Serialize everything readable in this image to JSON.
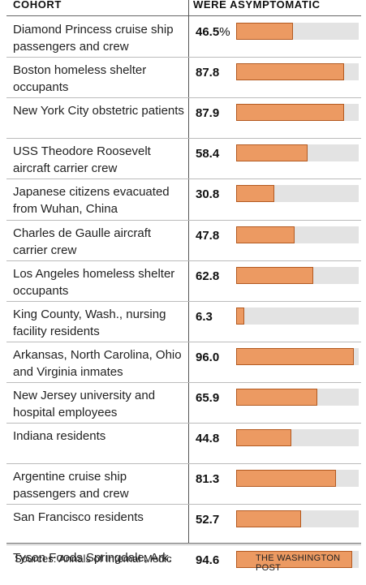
{
  "headers": {
    "cohort": "COHORT",
    "metric": "WERE ASYMPTOMATIC"
  },
  "colors": {
    "bar": "#ec9a62",
    "bar_border": "#b35a21",
    "track": "#e3e3e3"
  },
  "chart_data": {
    "type": "bar",
    "orientation": "horizontal",
    "xlim": [
      0,
      100
    ],
    "unit": "%",
    "categories": [
      "Diamond Princess cruise ship passengers and crew",
      "Boston homeless shelter occupants",
      "New York City obstetric patients",
      "USS Theodore Roosevelt aircraft carrier crew",
      "Japanese citizens evacuated from Wuhan, China",
      "Charles de Gaulle aircraft carrier crew",
      "Los Angeles homeless shelter occupants",
      "King County, Wash., nursing facility residents",
      "Arkansas, North Carolina, Ohio and Virginia inmates",
      "New Jersey university and hospital employees",
      "Indiana residents",
      "Argentine cruise ship passengers and crew",
      "San Francisco residents",
      "Tyson Foods Springdale, Ark."
    ],
    "values": [
      46.5,
      87.8,
      87.9,
      58.4,
      30.8,
      47.8,
      62.8,
      6.3,
      96.0,
      65.9,
      44.8,
      81.3,
      52.7,
      94.6
    ],
    "value_labels": [
      "46.5",
      "87.8",
      "87.9",
      "58.4",
      "30.8",
      "47.8",
      "62.8",
      "6.3",
      "96.0",
      "65.9",
      "44.8",
      "81.3",
      "52.7",
      "94.6"
    ]
  },
  "footer": {
    "source": "Sources: Annals of Internal Medic",
    "credit": "THE WASHINGTON POST"
  }
}
